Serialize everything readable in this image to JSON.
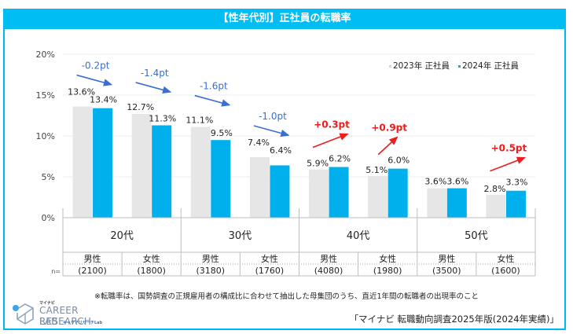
{
  "title": "【性年代別】正社員の転職率",
  "chart_data": {
    "type": "bar",
    "title": "【性年代別】正社員の転職率",
    "xlabel": "",
    "ylabel": "",
    "ylim": [
      0,
      20
    ],
    "yticks": [
      "0%",
      "5%",
      "10%",
      "15%",
      "20%"
    ],
    "ytick_values": [
      0,
      5,
      10,
      15,
      20
    ],
    "grid": true,
    "legend_position": "top-right",
    "age_groups": [
      "20代",
      "30代",
      "40代",
      "50代"
    ],
    "categories": [
      "20代 男性",
      "20代 女性",
      "30代 男性",
      "30代 女性",
      "40代 男性",
      "40代 女性",
      "50代 男性",
      "50代 女性"
    ],
    "genders": [
      "男性",
      "女性",
      "男性",
      "女性",
      "男性",
      "女性",
      "男性",
      "女性"
    ],
    "sample_sizes": [
      "(2100)",
      "(1800)",
      "(3180)",
      "(1760)",
      "(4080)",
      "(1980)",
      "(3500)",
      "(1600)"
    ],
    "n_label": "n=",
    "series": [
      {
        "name": "2023年 正社員",
        "color": "#e6e6e6",
        "values": [
          13.6,
          12.7,
          11.1,
          7.4,
          5.9,
          5.1,
          3.6,
          2.8
        ],
        "labels": [
          "13.6%",
          "12.7%",
          "11.1%",
          "7.4%",
          "5.9%",
          "5.1%",
          "3.6%",
          "2.8%"
        ]
      },
      {
        "name": "2024年 正社員",
        "color": "#00b0ec",
        "values": [
          13.4,
          11.3,
          9.5,
          6.4,
          6.2,
          6.0,
          3.6,
          3.3
        ],
        "labels": [
          "13.4%",
          "11.3%",
          "9.5%",
          "6.4%",
          "6.2%",
          "6.0%",
          "3.6%",
          "3.3%"
        ]
      }
    ],
    "annotations": [
      {
        "category_index": 0,
        "text": "-0.2pt",
        "direction": "down",
        "color": "#3a6fd0"
      },
      {
        "category_index": 1,
        "text": "-1.4pt",
        "direction": "down",
        "color": "#3a6fd0"
      },
      {
        "category_index": 2,
        "text": "-1.6pt",
        "direction": "down",
        "color": "#3a6fd0"
      },
      {
        "category_index": 3,
        "text": "-1.0pt",
        "direction": "down",
        "color": "#3a6fd0"
      },
      {
        "category_index": 4,
        "text": "+0.3pt",
        "direction": "up",
        "color": "#ee1c1c"
      },
      {
        "category_index": 5,
        "text": "+0.9pt",
        "direction": "up",
        "color": "#ee1c1c"
      },
      {
        "category_index": 7,
        "text": "+0.5pt",
        "direction": "up",
        "color": "#ee1c1c"
      }
    ]
  },
  "footnote": "※転職率は、国勢調査の正規雇用者の構成比に合わせて抽出した母集団のうち、直近1年間の転職者の出現率のこと",
  "source": "「マイナビ 転職動向調査2025年版(2024年実績)」",
  "logo": {
    "brand_small": "マイナビ",
    "line1": "CAREER RESEARCH",
    "line2": "LAB",
    "line2_sub": "キャリアリサーチLab"
  }
}
